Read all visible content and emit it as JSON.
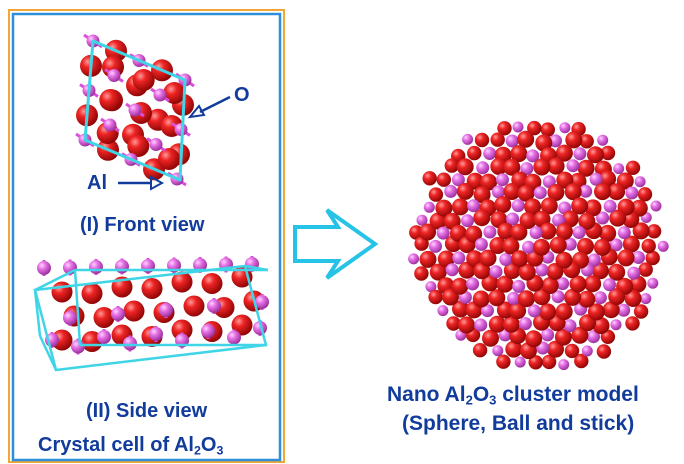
{
  "left_panel": {
    "callout_o": "O",
    "callout_al": "Al",
    "front_view_caption": "(I) Front view",
    "side_view_caption": "(II) Side view",
    "crystal_cell_caption": {
      "prefix": "Crystal cell of Al",
      "sub1": "2",
      "mid": "O",
      "sub2": "3"
    }
  },
  "right_panel": {
    "title": {
      "prefix": "Nano Al",
      "sub1": "2",
      "mid": "O",
      "sub2": "3",
      "suffix": " cluster model"
    },
    "subtitle": "(Sphere, Ball and stick)"
  },
  "colors": {
    "text": "#123c9c",
    "outer_border": "#f2a636",
    "inner_border": "#2e8fd8",
    "arrow": "#26c3e6",
    "cell_lines": "#3fd5e6",
    "oxygen": "#e01b1b",
    "aluminum": "#e36ee3"
  }
}
